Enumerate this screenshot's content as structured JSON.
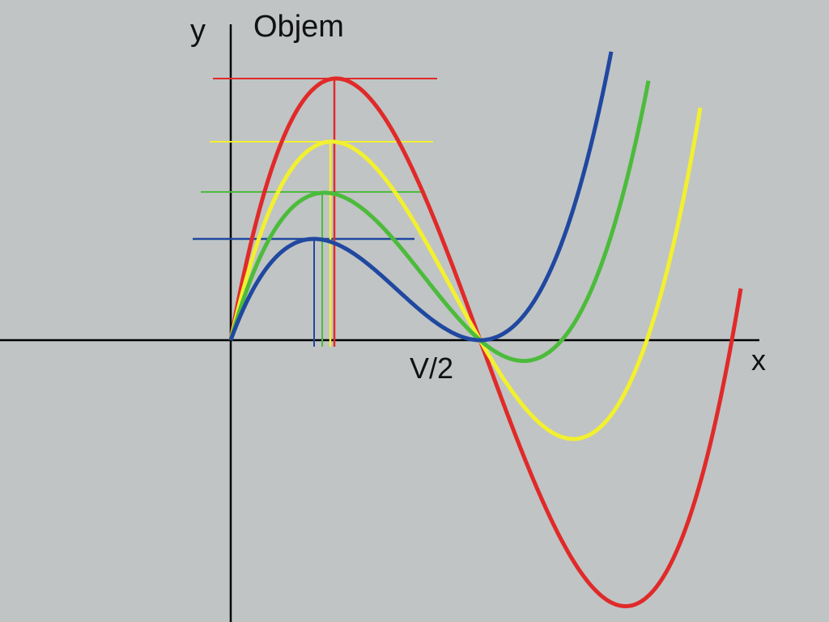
{
  "labels": {
    "y_axis": "y",
    "title": "Objem",
    "half_volume": "V/2",
    "x_axis": "x"
  }
}
